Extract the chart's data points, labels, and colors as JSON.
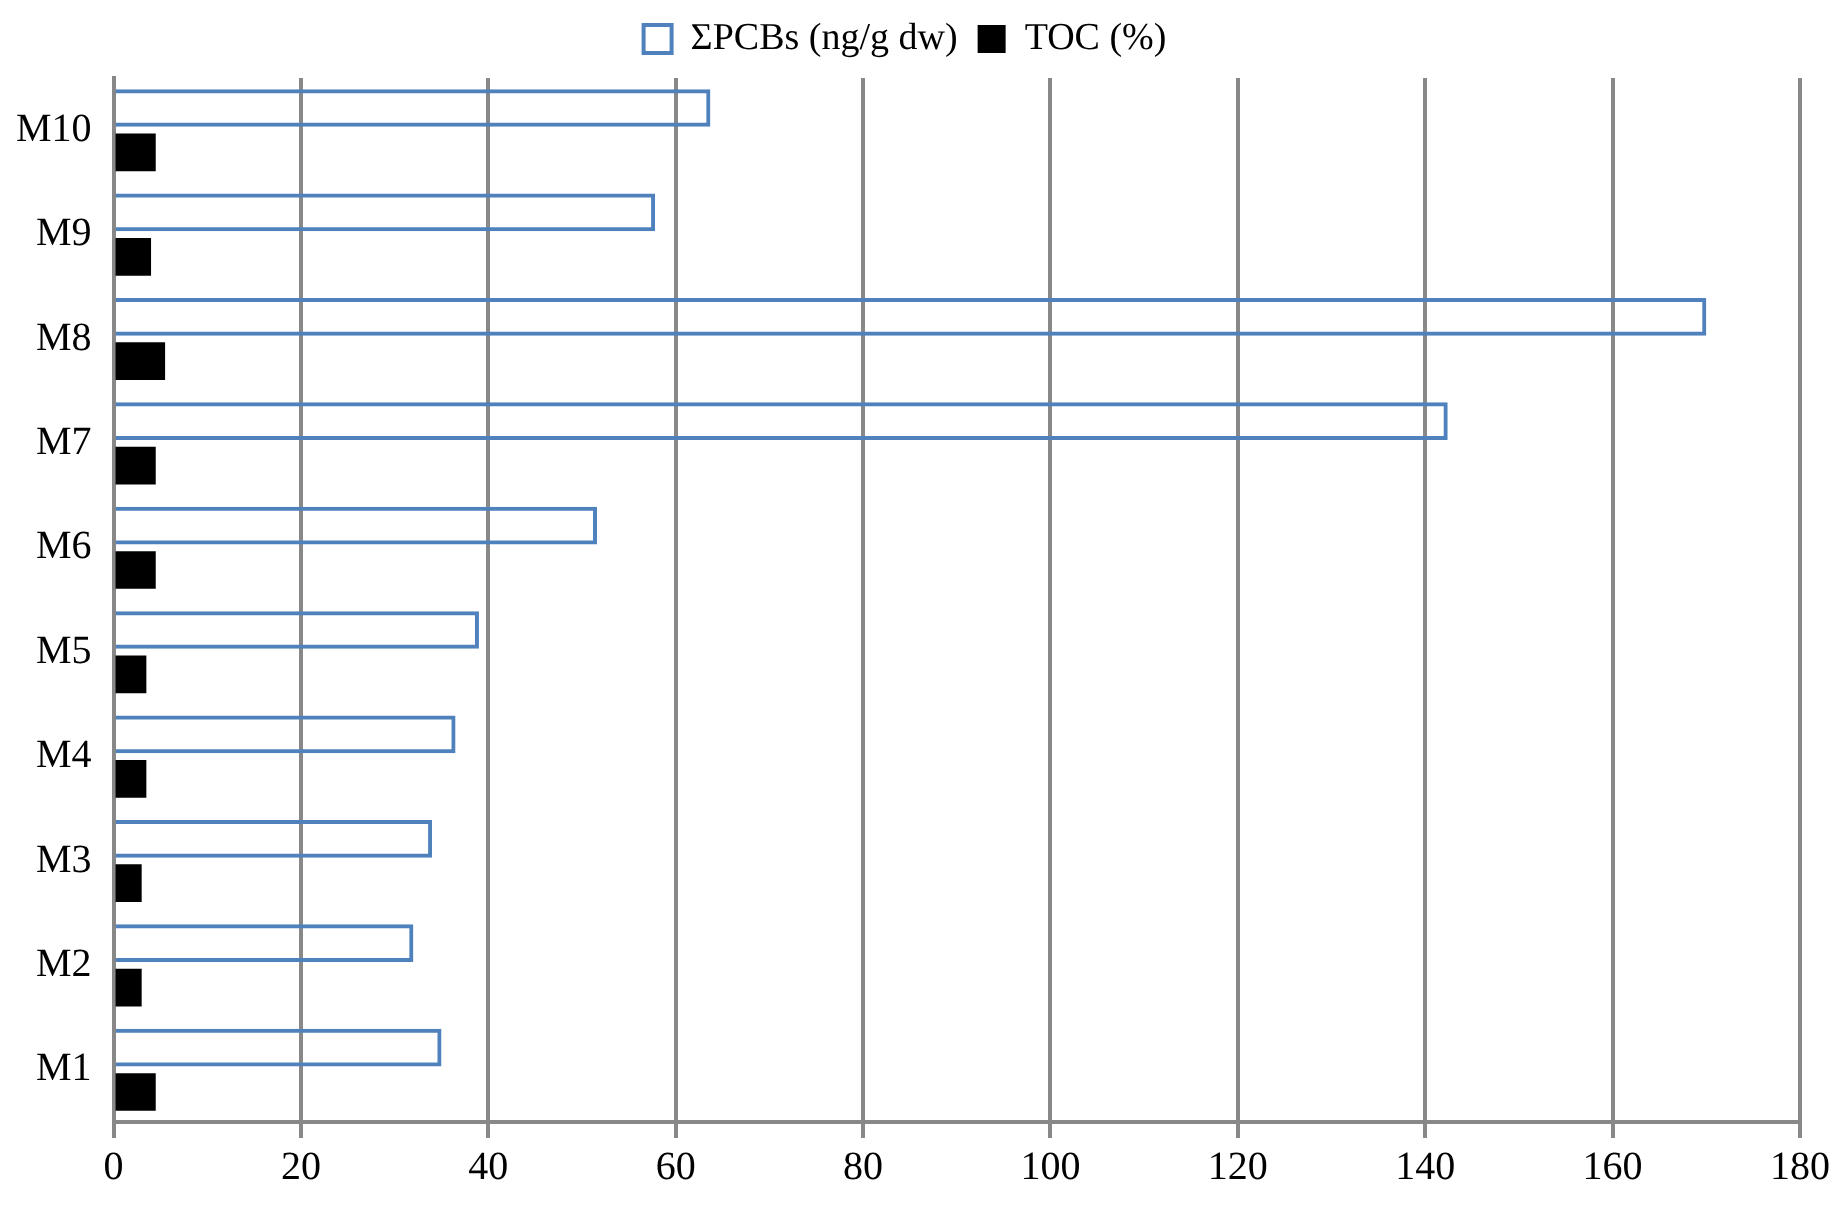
{
  "chart_data": {
    "type": "bar",
    "orientation": "horizontal",
    "categories": [
      "M10",
      "M9",
      "M8",
      "M7",
      "M6",
      "M5",
      "M4",
      "M3",
      "M2",
      "M1"
    ],
    "series": [
      {
        "name": "ΣPCBs (ng/g dw)",
        "color": "#4f81bd",
        "values": [
          63.7,
          57.8,
          170,
          142.4,
          51.6,
          39,
          36.5,
          34,
          32,
          35
        ]
      },
      {
        "name": "TOC (%)",
        "color": "#000000",
        "values": [
          4.5,
          4,
          5.5,
          4.5,
          4.5,
          3.5,
          3.5,
          3,
          3,
          4.5
        ]
      }
    ],
    "xlim": [
      0,
      180
    ],
    "xticks": [
      0,
      20,
      40,
      60,
      80,
      100,
      120,
      140,
      160,
      180
    ],
    "grid": "x",
    "legend": "top"
  }
}
